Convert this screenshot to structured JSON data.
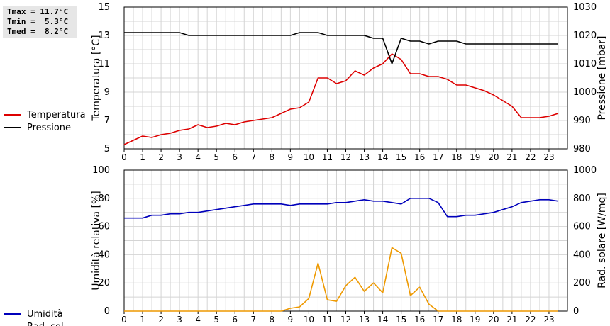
{
  "stats": {
    "tmax": "Tmax = 11.7°C",
    "tmin": "Tmin =  5.3°C",
    "tmed": "Tmed =  8.2°C"
  },
  "chart_data": [
    {
      "type": "line",
      "x_ticks": [
        "0",
        "1",
        "2",
        "3",
        "4",
        "5",
        "6",
        "7",
        "8",
        "9",
        "10",
        "11",
        "12",
        "13",
        "14",
        "15",
        "16",
        "17",
        "18",
        "19",
        "20",
        "21",
        "22",
        "23"
      ],
      "xlim": [
        0,
        24
      ],
      "ylabel_left": "Temperatura [°C]",
      "ylabel_right": "Pressione [mbar]",
      "ylim_left": [
        5,
        15
      ],
      "ylim_right": [
        980,
        1030
      ],
      "yticks_left": [
        "5",
        "7",
        "9",
        "11",
        "13",
        "15"
      ],
      "yticks_right": [
        "980",
        "990",
        "1000",
        "1010",
        "1020",
        "1030"
      ],
      "legend_placement": "left",
      "grid": true,
      "series": [
        {
          "name": "Temperatura",
          "axis": "left",
          "color": "#dd0000",
          "x": [
            0,
            0.5,
            1,
            1.5,
            2,
            2.5,
            3,
            3.5,
            4,
            4.5,
            5,
            5.5,
            6,
            6.5,
            7,
            7.5,
            8,
            8.5,
            9,
            9.5,
            10,
            10.5,
            11,
            11.5,
            12,
            12.5,
            13,
            13.5,
            14,
            14.5,
            15,
            15.5,
            16,
            16.5,
            17,
            17.5,
            18,
            18.5,
            19,
            19.5,
            20,
            20.5,
            21,
            21.5,
            22,
            22.5,
            23,
            23.5
          ],
          "values": [
            5.3,
            5.6,
            5.9,
            5.8,
            6.0,
            6.1,
            6.3,
            6.4,
            6.7,
            6.5,
            6.6,
            6.8,
            6.7,
            6.9,
            7.0,
            7.1,
            7.2,
            7.5,
            7.8,
            7.9,
            8.3,
            10.0,
            10.0,
            9.6,
            9.8,
            10.5,
            10.2,
            10.7,
            11.0,
            11.7,
            11.3,
            10.3,
            10.3,
            10.1,
            10.1,
            9.9,
            9.5,
            9.5,
            9.3,
            9.1,
            8.8,
            8.4,
            8.0,
            7.2,
            7.2,
            7.2,
            7.3,
            7.5
          ]
        },
        {
          "name": "Pressione",
          "axis": "right",
          "color": "#000000",
          "x": [
            0,
            0.5,
            1,
            1.5,
            2,
            2.5,
            3,
            3.5,
            4,
            4.5,
            5,
            5.5,
            6,
            6.5,
            7,
            7.5,
            8,
            8.5,
            9,
            9.5,
            10,
            10.5,
            11,
            11.5,
            12,
            12.5,
            13,
            13.5,
            14,
            14.5,
            15,
            15.5,
            16,
            16.5,
            17,
            17.5,
            18,
            18.5,
            19,
            19.5,
            20,
            20.5,
            21,
            21.5,
            22,
            22.5,
            23,
            23.5
          ],
          "values": [
            1021,
            1021,
            1021,
            1021,
            1021,
            1021,
            1021,
            1020,
            1020,
            1020,
            1020,
            1020,
            1020,
            1020,
            1020,
            1020,
            1020,
            1020,
            1020,
            1021,
            1021,
            1021,
            1020,
            1020,
            1020,
            1020,
            1020,
            1019,
            1019,
            1010,
            1019,
            1018,
            1018,
            1017,
            1018,
            1018,
            1018,
            1017,
            1017,
            1017,
            1017,
            1017,
            1017,
            1017,
            1017,
            1017,
            1017,
            1017
          ]
        }
      ]
    },
    {
      "type": "line",
      "x_ticks": [
        "0",
        "1",
        "2",
        "3",
        "4",
        "5",
        "6",
        "7",
        "8",
        "9",
        "10",
        "11",
        "12",
        "13",
        "14",
        "15",
        "16",
        "17",
        "18",
        "19",
        "20",
        "21",
        "22",
        "23"
      ],
      "xlim": [
        0,
        24
      ],
      "ylabel_left": "Umidità relativa [%]",
      "ylabel_right": "Rad. solare [W/mq]",
      "ylim_left": [
        0,
        100
      ],
      "ylim_right": [
        0,
        1000
      ],
      "yticks_left": [
        "0",
        "20",
        "40",
        "60",
        "80",
        "100"
      ],
      "yticks_right": [
        "0",
        "200",
        "400",
        "600",
        "800",
        "1000"
      ],
      "legend_placement": "left",
      "grid": true,
      "series": [
        {
          "name": "Umidità",
          "axis": "left",
          "color": "#0000bb",
          "x": [
            0,
            0.5,
            1,
            1.5,
            2,
            2.5,
            3,
            3.5,
            4,
            4.5,
            5,
            5.5,
            6,
            6.5,
            7,
            7.5,
            8,
            8.5,
            9,
            9.5,
            10,
            10.5,
            11,
            11.5,
            12,
            12.5,
            13,
            13.5,
            14,
            14.5,
            15,
            15.5,
            16,
            16.5,
            17,
            17.5,
            18,
            18.5,
            19,
            19.5,
            20,
            20.5,
            21,
            21.5,
            22,
            22.5,
            23,
            23.5
          ],
          "values": [
            66,
            66,
            66,
            68,
            68,
            69,
            69,
            70,
            70,
            71,
            72,
            73,
            74,
            75,
            76,
            76,
            76,
            76,
            75,
            76,
            76,
            76,
            76,
            77,
            77,
            78,
            79,
            78,
            78,
            77,
            76,
            80,
            80,
            80,
            77,
            67,
            67,
            68,
            68,
            69,
            70,
            72,
            74,
            77,
            78,
            79,
            79,
            78
          ]
        },
        {
          "name": "Rad. sol.",
          "axis": "right",
          "color": "#ee9900",
          "x": [
            0,
            0.5,
            1,
            1.5,
            2,
            2.5,
            3,
            3.5,
            4,
            4.5,
            5,
            5.5,
            6,
            6.5,
            7,
            7.5,
            8,
            8.5,
            9,
            9.5,
            10,
            10.5,
            11,
            11.5,
            12,
            12.5,
            13,
            13.5,
            14,
            14.5,
            15,
            15.5,
            16,
            16.5,
            17,
            17.5,
            18,
            18.5,
            19,
            19.5,
            20,
            20.5,
            21,
            21.5,
            22,
            22.5,
            23,
            23.5
          ],
          "values": [
            0,
            0,
            0,
            0,
            0,
            0,
            0,
            0,
            0,
            0,
            0,
            0,
            0,
            0,
            0,
            0,
            0,
            0,
            20,
            30,
            90,
            340,
            80,
            70,
            180,
            240,
            140,
            200,
            130,
            450,
            410,
            110,
            170,
            50,
            0,
            0,
            0,
            0,
            0,
            0,
            0,
            0,
            0,
            0,
            0,
            0,
            0,
            0
          ]
        }
      ]
    }
  ]
}
